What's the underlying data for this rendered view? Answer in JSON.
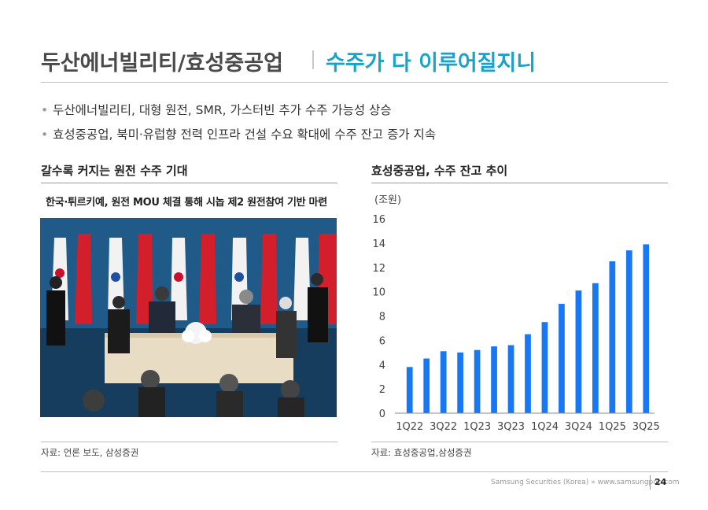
{
  "header": {
    "title_main": "두산에너빌리티/효성중공업",
    "title_sub": "수주가 다 이루어질지니"
  },
  "bullets": [
    "두산에너빌리티, 대형 원전, SMR, 가스터빈 추가 수주 가능성 상승",
    "효성중공업, 북미·유럽향 전력 인프라 건설 수요 확대에 수주 잔고 증가 지속"
  ],
  "left_panel": {
    "title": "갈수록 커지는 원전 수주 기대",
    "photo_caption": "한국·튀르키예, 원전 MOU 체결 통해 시놉 제2 원전참여 기반 마련",
    "source": "자료: 언론 보도, 삼성증권"
  },
  "right_panel": {
    "title": "효성중공업, 수주 잔고 추이",
    "unit": "(조원)",
    "source": "자료: 효성중공업,삼성증권"
  },
  "chart_data": {
    "type": "bar",
    "title": "효성중공업, 수주 잔고 추이",
    "ylabel": "(조원)",
    "xlabel": "",
    "categories": [
      "1Q22",
      "2Q22",
      "3Q22",
      "4Q22",
      "1Q23",
      "2Q23",
      "3Q23",
      "4Q23",
      "1Q24",
      "2Q24",
      "3Q24",
      "4Q24",
      "1Q25",
      "2Q25",
      "3Q25"
    ],
    "tick_labels": [
      "1Q22",
      "3Q22",
      "1Q23",
      "3Q23",
      "1Q24",
      "3Q24",
      "1Q25",
      "3Q25"
    ],
    "values": [
      3.8,
      4.5,
      5.1,
      5.0,
      5.2,
      5.5,
      5.6,
      6.5,
      7.5,
      9.0,
      10.1,
      10.7,
      12.5,
      13.4,
      13.9
    ],
    "ylim": [
      0,
      16
    ],
    "yticks": [
      0,
      2,
      4,
      6,
      8,
      10,
      12,
      14,
      16
    ],
    "grid": false,
    "bar_color": "#1877f2"
  },
  "footer": {
    "text": "Samsung Securities (Korea) » www.samsungpop.com",
    "page": "24"
  }
}
